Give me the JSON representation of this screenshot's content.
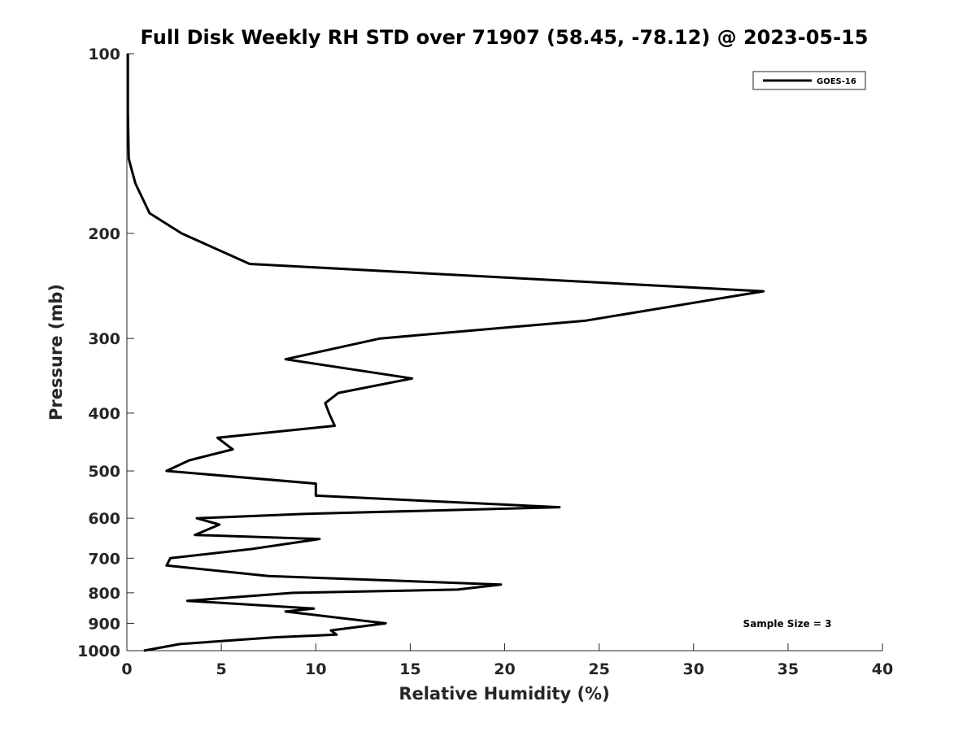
{
  "chart_data": {
    "type": "line",
    "title": "Full Disk Weekly RH STD over 71907 (58.45, -78.12) @ 2023-05-15",
    "xlabel": "Relative Humidity (%)",
    "ylabel": "Pressure (mb)",
    "xlim": [
      0,
      40
    ],
    "ylim": [
      100,
      1000
    ],
    "yscale": "log",
    "y_reversed": true,
    "xticks": [
      0,
      5,
      10,
      15,
      20,
      25,
      30,
      35,
      40
    ],
    "yticks": [
      100,
      200,
      300,
      400,
      500,
      600,
      700,
      800,
      900,
      1000
    ],
    "grid": false,
    "legend_position": "top-right",
    "annotation": "Sample Size = 3",
    "series": [
      {
        "name": "GOES-16",
        "color": "#000000",
        "points": [
          [
            0.05,
            100
          ],
          [
            0.05,
            125
          ],
          [
            0.1,
            150
          ],
          [
            0.45,
            165
          ],
          [
            1.2,
            185
          ],
          [
            2.9,
            200
          ],
          [
            6.5,
            225
          ],
          [
            33.7,
            250
          ],
          [
            24.3,
            280
          ],
          [
            13.4,
            300
          ],
          [
            8.4,
            325
          ],
          [
            15.1,
            350
          ],
          [
            11.2,
            370
          ],
          [
            10.5,
            385
          ],
          [
            10.7,
            400
          ],
          [
            11.0,
            420
          ],
          [
            4.8,
            440
          ],
          [
            5.6,
            460
          ],
          [
            3.3,
            480
          ],
          [
            2.1,
            500
          ],
          [
            10.0,
            525
          ],
          [
            10.0,
            550
          ],
          [
            22.9,
            575
          ],
          [
            9.5,
            590
          ],
          [
            3.7,
            600
          ],
          [
            4.9,
            615
          ],
          [
            3.6,
            640
          ],
          [
            10.2,
            650
          ],
          [
            6.7,
            675
          ],
          [
            2.3,
            700
          ],
          [
            2.1,
            720
          ],
          [
            7.5,
            750
          ],
          [
            19.8,
            775
          ],
          [
            17.5,
            790
          ],
          [
            8.8,
            800
          ],
          [
            3.2,
            825
          ],
          [
            9.9,
            850
          ],
          [
            8.4,
            860
          ],
          [
            13.7,
            900
          ],
          [
            10.8,
            925
          ],
          [
            11.1,
            940
          ],
          [
            7.8,
            950
          ],
          [
            2.8,
            975
          ],
          [
            0.9,
            1000
          ]
        ]
      }
    ]
  }
}
